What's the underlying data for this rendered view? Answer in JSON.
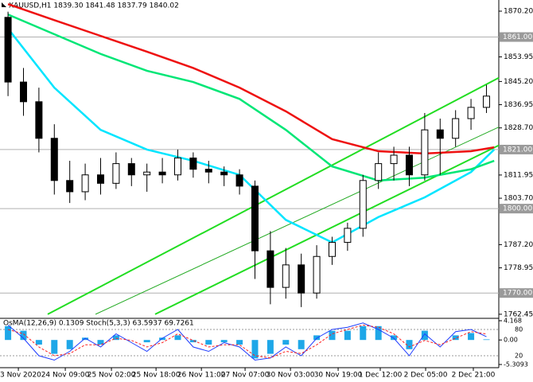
{
  "chart_data": [
    {
      "type": "candlestick",
      "title": "XAUUSD,H1 1839.30 1841.48 1837.79 1840.02",
      "xlim": [
        -0.52,
        31.8
      ],
      "ylim": [
        1761,
        1873.6
      ],
      "yticks": [
        {
          "value": 1870.2,
          "label": "1870.20"
        },
        {
          "value": 1853.95,
          "label": "1853.95"
        },
        {
          "value": 1845.2,
          "label": "1845.20"
        },
        {
          "value": 1836.95,
          "label": "1836.95"
        },
        {
          "value": 1828.7,
          "label": "1828.70"
        },
        {
          "value": 1811.95,
          "label": "1811.95"
        },
        {
          "value": 1803.7,
          "label": "1803.70"
        },
        {
          "value": 1787.2,
          "label": "1787.20"
        },
        {
          "value": 1778.95,
          "label": "1778.95"
        },
        {
          "value": 1762.45,
          "label": "1762.45"
        }
      ],
      "levels": [
        {
          "value": 1861,
          "label": "1861.00"
        },
        {
          "value": 1821,
          "label": "1821.00"
        },
        {
          "value": 1800,
          "label": "1800.00"
        },
        {
          "value": 1770,
          "label": "1770.00"
        }
      ],
      "xticks": [
        {
          "value": 0.67,
          "label": "23 Nov 2020"
        },
        {
          "value": 3.71,
          "label": "24 Nov 09:00"
        },
        {
          "value": 6.7,
          "label": "25 Nov 02:00"
        },
        {
          "value": 9.59,
          "label": "25 Nov 18:00"
        },
        {
          "value": 12.53,
          "label": "26 Nov 11:00"
        },
        {
          "value": 15.36,
          "label": "27 Nov 07:00"
        },
        {
          "value": 18.3,
          "label": "30 Nov 03:00"
        },
        {
          "value": 21.39,
          "label": "30 Nov 19:00"
        },
        {
          "value": 24.12,
          "label": "1 Dec 12:00"
        },
        {
          "value": 27.06,
          "label": "2 Dec 05:00"
        },
        {
          "value": 30.15,
          "label": "2 Dec 21:00"
        }
      ],
      "color": "#000000",
      "open": [
        1868,
        1845,
        1838,
        1825,
        1810,
        1806,
        1812,
        1809,
        1816,
        1812,
        1813,
        1812,
        1818,
        1814,
        1813,
        1812,
        1808,
        1785,
        1772,
        1780,
        1770,
        1783,
        1788,
        1793,
        1810,
        1816,
        1819,
        1812,
        1828,
        1825,
        1832,
        1836
      ],
      "high": [
        1870,
        1850,
        1843,
        1830,
        1817,
        1816,
        1818,
        1820,
        1818,
        1816,
        1818,
        1821,
        1820,
        1817,
        1815,
        1814,
        1810,
        1792,
        1786,
        1784,
        1787,
        1790,
        1795,
        1812,
        1820,
        1822,
        1822,
        1834,
        1832,
        1835,
        1839,
        1844
      ],
      "low": [
        1840,
        1833,
        1820,
        1805,
        1802,
        1803,
        1805,
        1807,
        1808,
        1806,
        1809,
        1810,
        1811,
        1809,
        1808,
        1805,
        1775,
        1766,
        1768,
        1765,
        1768,
        1780,
        1785,
        1790,
        1807,
        1810,
        1808,
        1810,
        1812,
        1822,
        1828,
        1834
      ],
      "close": [
        1845,
        1838,
        1825,
        1810,
        1806,
        1812,
        1809,
        1816,
        1812,
        1813,
        1812,
        1818,
        1814,
        1813,
        1812,
        1808,
        1785,
        1772,
        1780,
        1770,
        1783,
        1788,
        1793,
        1810,
        1816,
        1819,
        1812,
        1828,
        1825,
        1832,
        1836,
        1840
      ],
      "series": [
        {
          "color": "#00e5ff",
          "x": [
            0,
            3,
            6,
            9,
            12,
            15,
            18,
            21,
            24,
            27,
            30,
            31.5
          ],
          "values": [
            1864,
            1843,
            1828,
            1821,
            1817,
            1812,
            1796,
            1788,
            1797,
            1804,
            1813,
            1821
          ]
        },
        {
          "color": "#00e676",
          "x": [
            0,
            3,
            6,
            9,
            12,
            15,
            18,
            21,
            24,
            27,
            30,
            31.5
          ],
          "values": [
            1869,
            1862,
            1855,
            1849,
            1845,
            1839,
            1828,
            1815,
            1810,
            1811,
            1814,
            1817
          ]
        },
        {
          "color": "#ee1111",
          "x": [
            0,
            3,
            6,
            9,
            12,
            15,
            18,
            21,
            24,
            27,
            30,
            31.5
          ],
          "values": [
            1872.7,
            1867,
            1861.4,
            1855.8,
            1850,
            1843,
            1834.6,
            1824.7,
            1820.4,
            1819.6,
            1820.4,
            1821.8
          ]
        }
      ],
      "channels": [
        {
          "color": "#22dd22",
          "x": [
            2.57,
            31.8
          ],
          "values": [
            1762.45,
            1846.5
          ]
        },
        {
          "color": "#22aa22",
          "x": [
            5.67,
            31.8
          ],
          "values": [
            1762.45,
            1829
          ]
        },
        {
          "color": "#22dd22",
          "x": [
            9.53,
            31.8
          ],
          "values": [
            1762.45,
            1822.5
          ]
        }
      ]
    },
    {
      "type": "oscillator",
      "title": "OsMA(12,26,9) 0.1309 Stoch(5,3,3) 63.5937 69.7261",
      "ylim": [
        -5.3093,
        4.168
      ],
      "yticks": [
        4.168,
        {
          "value": 0,
          "label": "0.00"
        },
        -5.3093
      ],
      "y2lim": [
        0,
        100
      ],
      "y2ticks": [
        80,
        20
      ],
      "bars": {
        "color": "#1ea7e8",
        "values": [
          3,
          2,
          -1,
          -3,
          -2,
          0.5,
          -1,
          1,
          0,
          -0.5,
          0.5,
          1,
          -0.5,
          -1,
          -0.5,
          -1,
          -4,
          -3,
          -1,
          -2,
          1,
          2,
          2,
          3,
          3,
          1,
          -2,
          2,
          0,
          1,
          1.5,
          0.1309
        ]
      },
      "series": [
        {
          "color": "#1e3cff",
          "axis": "y2",
          "values": [
            90,
            60,
            20,
            10,
            30,
            60,
            40,
            70,
            50,
            30,
            60,
            80,
            40,
            30,
            50,
            40,
            10,
            15,
            40,
            20,
            60,
            80,
            85,
            95,
            80,
            60,
            20,
            70,
            40,
            75,
            80,
            63.5937
          ]
        },
        {
          "color": "#ff2020",
          "axis": "y2",
          "dashed": true,
          "values": [
            80,
            70,
            40,
            20,
            25,
            45,
            45,
            60,
            55,
            40,
            50,
            70,
            55,
            40,
            45,
            45,
            20,
            15,
            30,
            25,
            45,
            70,
            80,
            90,
            85,
            70,
            40,
            55,
            45,
            60,
            75,
            69.7261
          ]
        }
      ]
    }
  ]
}
